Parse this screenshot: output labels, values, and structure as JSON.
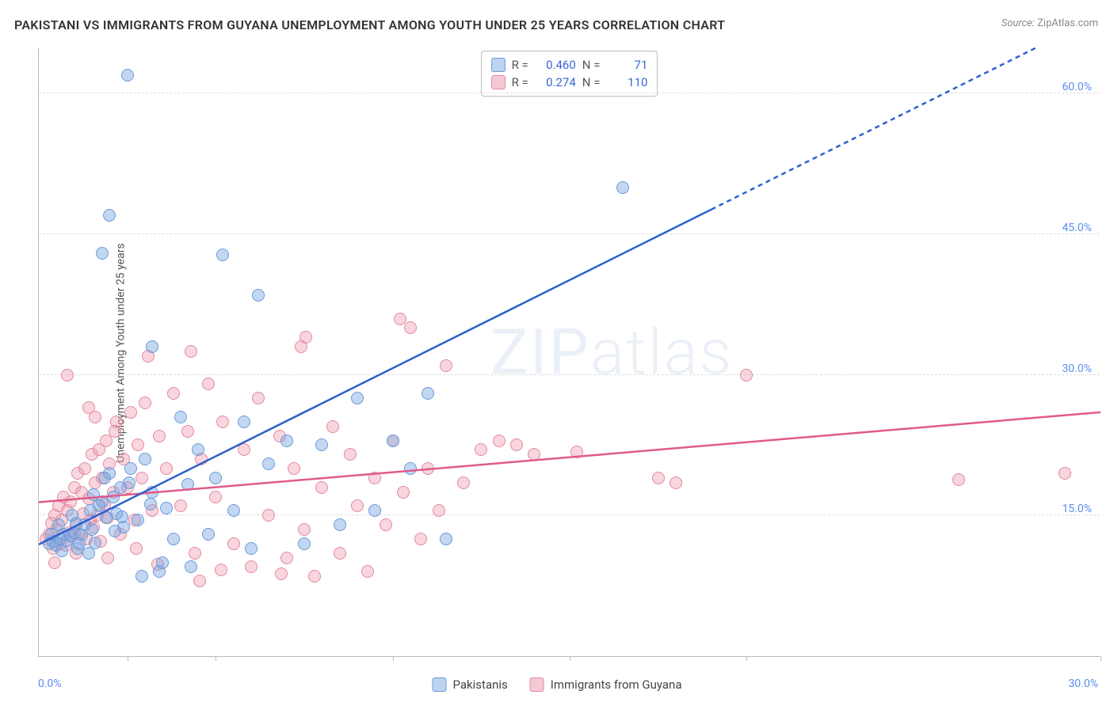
{
  "title": "PAKISTANI VS IMMIGRANTS FROM GUYANA UNEMPLOYMENT AMONG YOUTH UNDER 25 YEARS CORRELATION CHART",
  "source": {
    "label": "Source:",
    "value": "ZipAtlas.com"
  },
  "y_axis_label": "Unemployment Among Youth under 25 years",
  "watermark": {
    "zip": "ZIP",
    "atlas": "atlas"
  },
  "chart": {
    "type": "scatter",
    "background_color": "#ffffff",
    "grid_color": "#dddddd",
    "axis_color": "#bbbbbb",
    "xlim": [
      0,
      30
    ],
    "ylim": [
      0,
      65
    ],
    "x_tick_positions": [
      0,
      2.5,
      5,
      10,
      15,
      20,
      30
    ],
    "x_tick_labels": {
      "origin": "0.0%",
      "max": "30.0%"
    },
    "y_gridlines": [
      15,
      30,
      45,
      60
    ],
    "y_tick_labels": [
      "15.0%",
      "30.0%",
      "45.0%",
      "60.0%"
    ],
    "tick_label_color": "#5b8def",
    "tick_label_fontsize": 14,
    "marker_radius": 8,
    "marker_border_width": 1.5,
    "series": {
      "pakistanis": {
        "label": "Pakistanis",
        "fill_color": "rgba(121,167,227,0.45)",
        "border_color": "#6a9bd8",
        "swatch_fill": "#bcd4f0",
        "swatch_border": "#6a9bd8",
        "trendline_color": "#2e5fd0",
        "trendline_solid_end_x": 19,
        "trendline_y_intercept": 12,
        "trendline_slope": 1.88,
        "stats": {
          "r": "0.460",
          "n": "71"
        },
        "points": [
          [
            0.3,
            12.0
          ],
          [
            0.4,
            12.2
          ],
          [
            0.5,
            11.8
          ],
          [
            0.6,
            12.5
          ],
          [
            0.7,
            13.0
          ],
          [
            0.8,
            12.3
          ],
          [
            0.9,
            12.8
          ],
          [
            1.0,
            13.2
          ],
          [
            1.1,
            11.5
          ],
          [
            1.2,
            12.9
          ],
          [
            1.3,
            14.0
          ],
          [
            1.4,
            11.0
          ],
          [
            1.5,
            13.5
          ],
          [
            1.6,
            12.1
          ],
          [
            1.8,
            16.5
          ],
          [
            1.9,
            14.8
          ],
          [
            2.0,
            19.5
          ],
          [
            2.1,
            17.0
          ],
          [
            2.2,
            15.2
          ],
          [
            2.3,
            18.0
          ],
          [
            2.4,
            13.8
          ],
          [
            2.6,
            20.0
          ],
          [
            2.8,
            14.5
          ],
          [
            3.0,
            21.0
          ],
          [
            3.2,
            17.5
          ],
          [
            3.4,
            9.0
          ],
          [
            3.6,
            15.8
          ],
          [
            3.8,
            12.5
          ],
          [
            4.0,
            25.5
          ],
          [
            4.2,
            18.3
          ],
          [
            4.5,
            22.0
          ],
          [
            4.8,
            13.0
          ],
          [
            5.0,
            19.0
          ],
          [
            2.5,
            62.0
          ],
          [
            2.0,
            47.0
          ],
          [
            1.8,
            43.0
          ],
          [
            3.2,
            33.0
          ],
          [
            5.2,
            42.8
          ],
          [
            5.5,
            15.5
          ],
          [
            5.8,
            25.0
          ],
          [
            6.0,
            11.5
          ],
          [
            6.2,
            38.5
          ],
          [
            6.5,
            20.5
          ],
          [
            7.0,
            23.0
          ],
          [
            7.5,
            12.0
          ],
          [
            8.0,
            22.5
          ],
          [
            8.5,
            14.0
          ],
          [
            9.0,
            27.5
          ],
          [
            9.5,
            15.5
          ],
          [
            10.0,
            23.0
          ],
          [
            10.5,
            20.0
          ],
          [
            11.0,
            28.0
          ],
          [
            11.5,
            12.5
          ],
          [
            16.5,
            50.0
          ],
          [
            2.9,
            8.5
          ],
          [
            3.5,
            10.0
          ],
          [
            4.3,
            9.5
          ],
          [
            1.7,
            16.0
          ],
          [
            2.55,
            18.5
          ],
          [
            1.05,
            14.2
          ],
          [
            0.95,
            15.0
          ],
          [
            1.45,
            15.5
          ],
          [
            1.15,
            12.0
          ],
          [
            0.65,
            11.2
          ],
          [
            0.35,
            13.0
          ],
          [
            0.55,
            14.0
          ],
          [
            1.55,
            17.2
          ],
          [
            1.85,
            19.0
          ],
          [
            2.35,
            14.9
          ],
          [
            2.15,
            13.3
          ],
          [
            3.15,
            16.2
          ]
        ]
      },
      "guyana": {
        "label": "Immigrants from Guyana",
        "fill_color": "rgba(240,150,170,0.40)",
        "border_color": "#e08aa0",
        "swatch_fill": "#f5c9d4",
        "swatch_border": "#e08aa0",
        "trendline_color": "#e05a8a",
        "trendline_y_intercept": 16.5,
        "trendline_slope": 0.32,
        "stats": {
          "r": "0.274",
          "n": "110"
        },
        "points": [
          [
            0.2,
            12.5
          ],
          [
            0.3,
            13.0
          ],
          [
            0.35,
            14.2
          ],
          [
            0.4,
            11.5
          ],
          [
            0.45,
            15.0
          ],
          [
            0.5,
            13.5
          ],
          [
            0.55,
            16.0
          ],
          [
            0.6,
            12.0
          ],
          [
            0.65,
            14.5
          ],
          [
            0.7,
            17.0
          ],
          [
            0.75,
            11.8
          ],
          [
            0.8,
            15.5
          ],
          [
            0.85,
            13.2
          ],
          [
            0.9,
            16.5
          ],
          [
            0.95,
            12.8
          ],
          [
            1.0,
            18.0
          ],
          [
            1.05,
            14.0
          ],
          [
            1.1,
            19.5
          ],
          [
            1.15,
            13.0
          ],
          [
            1.2,
            17.5
          ],
          [
            1.25,
            15.2
          ],
          [
            1.3,
            20.0
          ],
          [
            1.35,
            12.5
          ],
          [
            1.4,
            16.8
          ],
          [
            1.45,
            14.5
          ],
          [
            1.5,
            21.5
          ],
          [
            1.55,
            13.8
          ],
          [
            1.6,
            18.5
          ],
          [
            1.65,
            15.0
          ],
          [
            1.7,
            22.0
          ],
          [
            1.75,
            12.2
          ],
          [
            1.8,
            19.0
          ],
          [
            1.85,
            16.2
          ],
          [
            1.9,
            23.0
          ],
          [
            1.95,
            14.8
          ],
          [
            2.0,
            20.5
          ],
          [
            2.1,
            17.5
          ],
          [
            2.2,
            25.0
          ],
          [
            2.3,
            13.0
          ],
          [
            2.4,
            21.0
          ],
          [
            2.5,
            18.0
          ],
          [
            2.6,
            26.0
          ],
          [
            2.7,
            14.5
          ],
          [
            2.8,
            22.5
          ],
          [
            2.9,
            19.0
          ],
          [
            3.0,
            27.0
          ],
          [
            3.2,
            15.5
          ],
          [
            3.4,
            23.5
          ],
          [
            3.6,
            20.0
          ],
          [
            3.8,
            28.0
          ],
          [
            4.0,
            16.0
          ],
          [
            4.2,
            24.0
          ],
          [
            4.4,
            11.0
          ],
          [
            4.6,
            21.0
          ],
          [
            4.8,
            29.0
          ],
          [
            5.0,
            17.0
          ],
          [
            5.2,
            25.0
          ],
          [
            5.5,
            12.0
          ],
          [
            5.8,
            22.0
          ],
          [
            6.0,
            9.5
          ],
          [
            6.2,
            27.5
          ],
          [
            6.5,
            15.0
          ],
          [
            6.8,
            23.5
          ],
          [
            7.0,
            10.5
          ],
          [
            7.2,
            20.0
          ],
          [
            7.5,
            13.5
          ],
          [
            7.8,
            8.5
          ],
          [
            8.0,
            18.0
          ],
          [
            8.3,
            24.5
          ],
          [
            8.5,
            11.0
          ],
          [
            8.8,
            21.5
          ],
          [
            9.0,
            16.0
          ],
          [
            9.3,
            9.0
          ],
          [
            9.5,
            19.0
          ],
          [
            9.8,
            14.0
          ],
          [
            10.0,
            23.0
          ],
          [
            10.3,
            17.5
          ],
          [
            10.5,
            35.0
          ],
          [
            10.8,
            12.5
          ],
          [
            10.2,
            36.0
          ],
          [
            11.0,
            20.0
          ],
          [
            11.3,
            15.5
          ],
          [
            11.5,
            31.0
          ],
          [
            12.0,
            18.5
          ],
          [
            12.5,
            22.0
          ],
          [
            13.0,
            23.0
          ],
          [
            13.5,
            22.5
          ],
          [
            14.0,
            21.5
          ],
          [
            15.2,
            21.8
          ],
          [
            17.5,
            19.0
          ],
          [
            18.0,
            18.5
          ],
          [
            20.0,
            30.0
          ],
          [
            26.0,
            18.8
          ],
          [
            29.0,
            19.5
          ],
          [
            0.8,
            30.0
          ],
          [
            1.6,
            25.5
          ],
          [
            2.15,
            24.0
          ],
          [
            1.4,
            26.5
          ],
          [
            3.1,
            32.0
          ],
          [
            4.3,
            32.5
          ],
          [
            7.4,
            33.0
          ],
          [
            7.55,
            34.0
          ],
          [
            0.45,
            10.0
          ],
          [
            1.95,
            10.5
          ],
          [
            3.35,
            9.8
          ],
          [
            4.55,
            8.0
          ],
          [
            5.15,
            9.2
          ],
          [
            6.85,
            8.8
          ],
          [
            1.05,
            11.0
          ],
          [
            2.75,
            11.5
          ]
        ]
      }
    }
  },
  "stats_box": {
    "r_label": "R =",
    "n_label": "N ="
  },
  "legend": {
    "pakistanis": "Pakistanis",
    "guyana": "Immigrants from Guyana"
  }
}
